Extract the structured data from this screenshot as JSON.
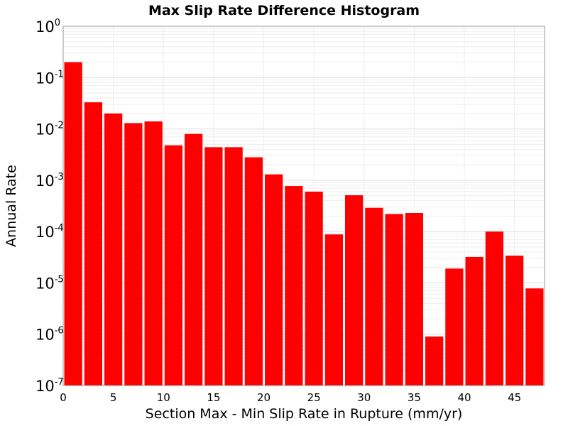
{
  "chart_data": {
    "type": "bar",
    "title": "Max Slip Rate Difference Histogram",
    "xlabel": "Section Max - Min Slip Rate in Rupture (mm/yr)",
    "ylabel": "Annual Rate",
    "xlim": [
      0,
      48
    ],
    "ylim": [
      1e-07,
      1
    ],
    "y_scale": "log",
    "bin_width": 2,
    "grid": true,
    "x": [
      1,
      3,
      5,
      7,
      9,
      11,
      13,
      15,
      17,
      19,
      21,
      23,
      25,
      27,
      29,
      31,
      33,
      35,
      37,
      39,
      41,
      43,
      45,
      47
    ],
    "values": [
      0.2,
      0.033,
      0.02,
      0.013,
      0.014,
      0.0048,
      0.008,
      0.0044,
      0.0044,
      0.0028,
      0.0013,
      0.00077,
      0.0006,
      8.8e-05,
      0.00051,
      0.00029,
      0.00022,
      0.00023,
      9e-07,
      1.9e-05,
      3.2e-05,
      0.0001,
      3.4e-05,
      7.8e-06
    ],
    "x_ticks": [
      "0",
      "5",
      "10",
      "15",
      "20",
      "25",
      "30",
      "35",
      "40",
      "45"
    ],
    "y_ticks": [
      {
        "base": "10",
        "exp": "0"
      },
      {
        "base": "10",
        "exp": "-1"
      },
      {
        "base": "10",
        "exp": "-2"
      },
      {
        "base": "10",
        "exp": "-3"
      },
      {
        "base": "10",
        "exp": "-4"
      },
      {
        "base": "10",
        "exp": "-5"
      },
      {
        "base": "10",
        "exp": "-6"
      },
      {
        "base": "10",
        "exp": "-7"
      }
    ],
    "bar_color": "#ff0000"
  }
}
